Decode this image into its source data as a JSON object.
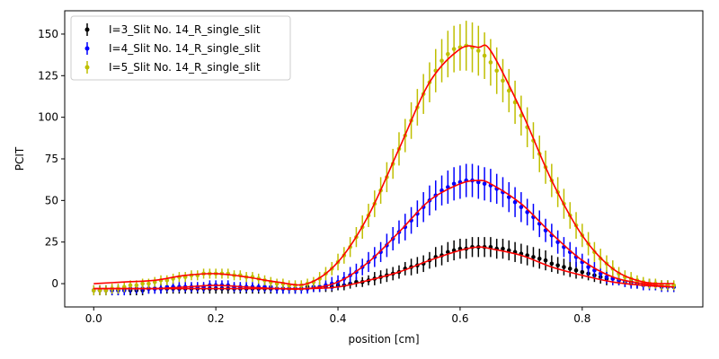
{
  "chart_data": {
    "type": "scatter",
    "xlabel": "position [cm]",
    "ylabel": "PCIT",
    "xlim": [
      -0.0475,
      0.9975
    ],
    "ylim": [
      -14,
      164
    ],
    "xticks": [
      0.0,
      0.2,
      0.4,
      0.6,
      0.8
    ],
    "xtick_labels": [
      "0.0",
      "0.2",
      "0.4",
      "0.6",
      "0.8"
    ],
    "yticks": [
      0,
      25,
      50,
      75,
      100,
      125,
      150
    ],
    "ytick_labels": [
      "0",
      "25",
      "50",
      "75",
      "100",
      "125",
      "150"
    ],
    "grid": false,
    "legend_position": "upper-left",
    "fit_color": "#ff0000",
    "x": [
      0.0,
      0.01,
      0.02,
      0.03,
      0.04,
      0.05,
      0.06,
      0.07,
      0.08,
      0.09,
      0.1,
      0.11,
      0.12,
      0.13,
      0.14,
      0.15,
      0.16,
      0.17,
      0.18,
      0.19,
      0.2,
      0.21,
      0.22,
      0.23,
      0.24,
      0.25,
      0.26,
      0.27,
      0.28,
      0.29,
      0.3,
      0.31,
      0.32,
      0.33,
      0.34,
      0.35,
      0.36,
      0.37,
      0.38,
      0.39,
      0.4,
      0.41,
      0.42,
      0.43,
      0.44,
      0.45,
      0.46,
      0.47,
      0.48,
      0.49,
      0.5,
      0.51,
      0.52,
      0.53,
      0.54,
      0.55,
      0.56,
      0.57,
      0.58,
      0.59,
      0.6,
      0.61,
      0.62,
      0.63,
      0.64,
      0.65,
      0.66,
      0.67,
      0.68,
      0.69,
      0.7,
      0.71,
      0.72,
      0.73,
      0.74,
      0.75,
      0.76,
      0.77,
      0.78,
      0.79,
      0.8,
      0.81,
      0.82,
      0.83,
      0.84,
      0.85,
      0.86,
      0.87,
      0.88,
      0.89,
      0.9,
      0.91,
      0.92,
      0.93,
      0.94,
      0.95
    ],
    "series": [
      {
        "name": "I=3_Slit No. 14_R_single_slit",
        "color": "#000000",
        "y": [
          -4,
          -4,
          -4,
          -4,
          -4,
          -4,
          -4,
          -4,
          -4,
          -3,
          -3,
          -3,
          -3,
          -3,
          -3,
          -3,
          -3,
          -3,
          -3,
          -3,
          -3,
          -3,
          -3,
          -3,
          -3,
          -3,
          -3,
          -3,
          -3,
          -3,
          -3,
          -3,
          -3,
          -3,
          -3,
          -2,
          -2,
          -2,
          -2,
          -2,
          -1,
          -1,
          0,
          1,
          1,
          2,
          3,
          4,
          5,
          6,
          7,
          9,
          10,
          11,
          12,
          14,
          16,
          17,
          19,
          20,
          21,
          21,
          22,
          22,
          22,
          22,
          21,
          21,
          20,
          19,
          18,
          17,
          16,
          15,
          14,
          12,
          11,
          10,
          9,
          8,
          7,
          6,
          5,
          4,
          3,
          3,
          2,
          1,
          1,
          0,
          0,
          0,
          -1,
          -1,
          -1,
          -2
        ],
        "err": [
          3,
          3,
          3,
          3,
          3,
          3,
          3,
          3,
          3,
          3,
          3,
          3,
          3,
          3,
          3,
          3,
          3,
          3,
          3,
          3,
          3,
          3,
          3,
          3,
          3,
          3,
          3,
          3,
          3,
          3,
          3,
          3,
          3,
          3,
          3,
          3,
          3,
          3,
          3,
          3,
          3,
          3,
          3,
          3,
          3,
          3,
          4,
          4,
          4,
          4,
          4,
          4,
          5,
          5,
          5,
          5,
          6,
          6,
          6,
          6,
          6,
          6,
          6,
          6,
          6,
          6,
          6,
          6,
          6,
          6,
          6,
          6,
          6,
          6,
          6,
          5,
          5,
          5,
          5,
          5,
          4,
          4,
          4,
          4,
          4,
          3,
          3,
          3,
          3,
          3,
          3,
          3,
          3,
          3,
          3,
          3
        ]
      },
      {
        "name": "I=4_Slit No. 14_R_single_slit",
        "color": "#0000ff",
        "y": [
          -4,
          -4,
          -4,
          -4,
          -4,
          -4,
          -3,
          -3,
          -3,
          -3,
          -3,
          -3,
          -2,
          -2,
          -2,
          -2,
          -2,
          -2,
          -2,
          -1,
          -1,
          -1,
          -1,
          -2,
          -2,
          -2,
          -2,
          -2,
          -2,
          -2,
          -3,
          -3,
          -3,
          -3,
          -3,
          -3,
          -2,
          -2,
          -1,
          0,
          1,
          3,
          5,
          7,
          10,
          13,
          16,
          19,
          23,
          27,
          31,
          34,
          38,
          42,
          46,
          50,
          53,
          56,
          58,
          60,
          61,
          62,
          62,
          61,
          60,
          59,
          57,
          55,
          52,
          49,
          46,
          43,
          40,
          36,
          32,
          29,
          25,
          22,
          19,
          16,
          13,
          10,
          8,
          6,
          4,
          3,
          2,
          1,
          0,
          0,
          -1,
          -1,
          -1,
          -2,
          -2,
          -2
        ],
        "err": [
          3,
          3,
          3,
          3,
          3,
          3,
          3,
          3,
          3,
          3,
          3,
          3,
          3,
          3,
          3,
          3,
          3,
          3,
          3,
          3,
          3,
          3,
          3,
          3,
          3,
          3,
          3,
          3,
          3,
          3,
          3,
          3,
          3,
          3,
          3,
          3,
          3,
          3,
          3,
          4,
          4,
          4,
          5,
          5,
          5,
          6,
          6,
          6,
          7,
          7,
          7,
          8,
          8,
          8,
          9,
          9,
          9,
          9,
          10,
          10,
          10,
          10,
          10,
          10,
          10,
          10,
          9,
          9,
          9,
          9,
          9,
          8,
          8,
          8,
          7,
          7,
          7,
          6,
          6,
          6,
          5,
          5,
          5,
          4,
          4,
          4,
          3,
          3,
          3,
          3,
          3,
          3,
          3,
          3,
          3,
          3
        ]
      },
      {
        "name": "I=5_Slit No. 14_R_single_slit",
        "color": "#bfbf00",
        "y": [
          -4,
          -4,
          -4,
          -3,
          -3,
          -2,
          -1,
          -1,
          0,
          0,
          1,
          2,
          2,
          3,
          4,
          4,
          5,
          5,
          6,
          6,
          6,
          6,
          6,
          5,
          5,
          4,
          4,
          3,
          2,
          1,
          0,
          0,
          -1,
          -1,
          -1,
          0,
          1,
          3,
          6,
          9,
          13,
          17,
          22,
          28,
          34,
          41,
          48,
          56,
          64,
          72,
          81,
          89,
          98,
          106,
          114,
          121,
          128,
          134,
          138,
          141,
          142,
          143,
          142,
          140,
          137,
          133,
          128,
          122,
          116,
          109,
          101,
          94,
          86,
          78,
          70,
          62,
          55,
          48,
          41,
          35,
          29,
          24,
          19,
          15,
          12,
          9,
          6,
          4,
          3,
          2,
          1,
          0,
          0,
          -1,
          -1,
          -1
        ],
        "err": [
          3,
          3,
          3,
          3,
          3,
          3,
          3,
          3,
          3,
          3,
          3,
          3,
          3,
          3,
          3,
          3,
          3,
          3,
          3,
          3,
          3,
          3,
          3,
          3,
          3,
          3,
          3,
          3,
          3,
          3,
          3,
          3,
          3,
          3,
          3,
          3,
          3,
          4,
          4,
          4,
          5,
          5,
          6,
          6,
          7,
          7,
          8,
          8,
          9,
          9,
          10,
          10,
          11,
          11,
          12,
          12,
          13,
          13,
          14,
          14,
          14,
          15,
          15,
          15,
          14,
          14,
          14,
          13,
          13,
          13,
          12,
          12,
          11,
          11,
          10,
          10,
          9,
          9,
          8,
          8,
          7,
          7,
          6,
          6,
          5,
          5,
          4,
          4,
          4,
          3,
          3,
          3,
          3,
          3,
          3,
          3
        ]
      }
    ],
    "fit_curves": [
      {
        "x": [
          0.0,
          0.05,
          0.1,
          0.15,
          0.2,
          0.25,
          0.3,
          0.35,
          0.4,
          0.45,
          0.5,
          0.55,
          0.6,
          0.63,
          0.65,
          0.7,
          0.75,
          0.8,
          0.85,
          0.9,
          0.95
        ],
        "y": [
          -3,
          -3,
          -3,
          -3,
          -3,
          -3,
          -3,
          -3,
          -2,
          2,
          7,
          14,
          20,
          22,
          21,
          17,
          10,
          5,
          1,
          -1,
          -2
        ]
      },
      {
        "x": [
          0.0,
          0.05,
          0.1,
          0.15,
          0.2,
          0.25,
          0.3,
          0.35,
          0.4,
          0.45,
          0.5,
          0.55,
          0.6,
          0.63,
          0.65,
          0.7,
          0.75,
          0.8,
          0.85,
          0.9,
          0.95
        ],
        "y": [
          -3,
          -3,
          -3,
          -2,
          -1,
          -2,
          -3,
          -3,
          1,
          13,
          31,
          50,
          60,
          62,
          60,
          48,
          30,
          14,
          4,
          0,
          -2
        ]
      },
      {
        "x": [
          0.0,
          0.05,
          0.1,
          0.15,
          0.2,
          0.25,
          0.3,
          0.35,
          0.4,
          0.45,
          0.5,
          0.55,
          0.6,
          0.63,
          0.65,
          0.7,
          0.75,
          0.8,
          0.85,
          0.9,
          0.95
        ],
        "y": [
          0,
          1,
          2,
          5,
          6,
          4,
          1,
          0,
          13,
          41,
          81,
          121,
          141,
          142,
          140,
          104,
          62,
          29,
          9,
          1,
          0
        ]
      }
    ]
  }
}
